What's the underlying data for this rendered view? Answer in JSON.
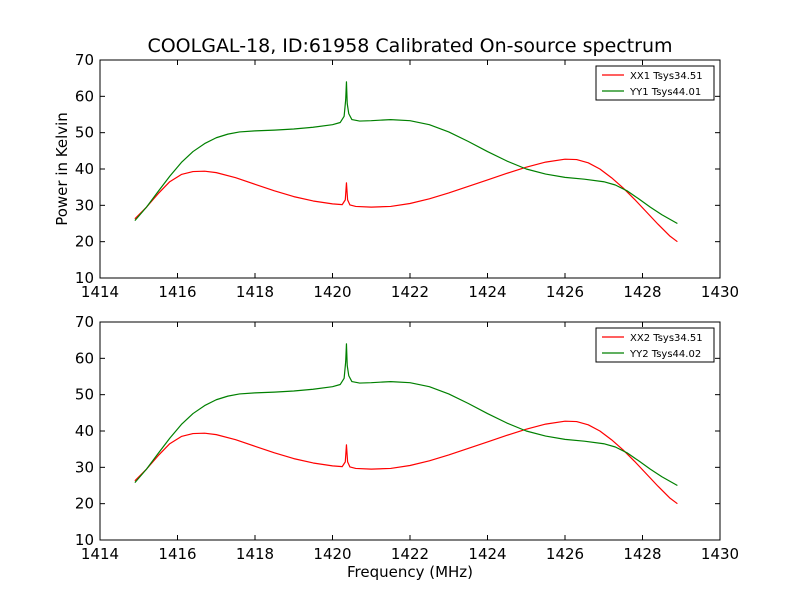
{
  "figure": {
    "title": "COOLGAL-18, ID:61958 Calibrated On-source spectrum",
    "xlabel": "Frequency (MHz)",
    "ylabel": "Power in Kelvin"
  },
  "chart_data": [
    {
      "type": "line",
      "title": "COOLGAL-18, ID:61958 Calibrated On-source spectrum",
      "xlabel": "",
      "ylabel": "Power in Kelvin",
      "xlim": [
        1414,
        1430
      ],
      "ylim": [
        10,
        70
      ],
      "xticks": [
        1414,
        1416,
        1418,
        1420,
        1422,
        1424,
        1426,
        1428,
        1430
      ],
      "yticks": [
        10,
        20,
        30,
        40,
        50,
        60,
        70
      ],
      "legend": "top-right",
      "series": [
        {
          "name": "XX1 Tsys34.51",
          "color": "#ff0000",
          "x": [
            1414.9,
            1415.2,
            1415.5,
            1415.8,
            1416.1,
            1416.4,
            1416.7,
            1417.0,
            1417.5,
            1418.0,
            1418.5,
            1419.0,
            1419.5,
            1420.0,
            1420.25,
            1420.33,
            1420.36,
            1420.39,
            1420.45,
            1420.6,
            1421.0,
            1421.5,
            1422.0,
            1422.5,
            1423.0,
            1423.5,
            1424.0,
            1424.5,
            1425.0,
            1425.5,
            1426.0,
            1426.3,
            1426.6,
            1426.9,
            1427.2,
            1427.5,
            1427.8,
            1428.1,
            1428.4,
            1428.7,
            1428.9
          ],
          "y": [
            26.3,
            29.5,
            33.2,
            36.5,
            38.5,
            39.3,
            39.4,
            39.0,
            37.6,
            35.8,
            34.0,
            32.4,
            31.2,
            30.4,
            30.2,
            31.5,
            36.2,
            31.5,
            30.1,
            29.7,
            29.5,
            29.7,
            30.5,
            31.8,
            33.4,
            35.2,
            37.0,
            38.8,
            40.5,
            41.9,
            42.7,
            42.6,
            41.7,
            40.0,
            37.6,
            34.8,
            31.6,
            28.2,
            24.8,
            21.6,
            20.0
          ]
        },
        {
          "name": "YY1 Tsys44.01",
          "color": "#008000",
          "x": [
            1414.9,
            1415.2,
            1415.5,
            1415.8,
            1416.1,
            1416.4,
            1416.7,
            1417.0,
            1417.3,
            1417.6,
            1418.0,
            1418.5,
            1419.0,
            1419.5,
            1420.0,
            1420.2,
            1420.3,
            1420.34,
            1420.36,
            1420.38,
            1420.42,
            1420.5,
            1420.7,
            1421.0,
            1421.5,
            1422.0,
            1422.5,
            1423.0,
            1423.5,
            1424.0,
            1424.5,
            1425.0,
            1425.5,
            1426.0,
            1426.5,
            1427.0,
            1427.3,
            1427.6,
            1427.9,
            1428.2,
            1428.5,
            1428.9
          ],
          "y": [
            25.8,
            29.5,
            33.8,
            38.0,
            41.8,
            44.8,
            47.0,
            48.6,
            49.6,
            50.2,
            50.5,
            50.7,
            51.0,
            51.5,
            52.2,
            52.8,
            54.5,
            59.0,
            64.0,
            58.0,
            55.2,
            53.6,
            53.2,
            53.3,
            53.6,
            53.3,
            52.2,
            50.2,
            47.6,
            44.8,
            42.2,
            40.0,
            38.6,
            37.7,
            37.2,
            36.5,
            35.6,
            34.0,
            31.8,
            29.5,
            27.4,
            25.0
          ]
        }
      ]
    },
    {
      "type": "line",
      "title": "",
      "xlabel": "Frequency (MHz)",
      "ylabel": "",
      "xlim": [
        1414,
        1430
      ],
      "ylim": [
        10,
        70
      ],
      "xticks": [
        1414,
        1416,
        1418,
        1420,
        1422,
        1424,
        1426,
        1428,
        1430
      ],
      "yticks": [
        10,
        20,
        30,
        40,
        50,
        60,
        70
      ],
      "legend": "top-right",
      "series": [
        {
          "name": "XX2 Tsys34.51",
          "color": "#ff0000",
          "x": [
            1414.9,
            1415.2,
            1415.5,
            1415.8,
            1416.1,
            1416.4,
            1416.7,
            1417.0,
            1417.5,
            1418.0,
            1418.5,
            1419.0,
            1419.5,
            1420.0,
            1420.25,
            1420.33,
            1420.36,
            1420.39,
            1420.45,
            1420.6,
            1421.0,
            1421.5,
            1422.0,
            1422.5,
            1423.0,
            1423.5,
            1424.0,
            1424.5,
            1425.0,
            1425.5,
            1426.0,
            1426.3,
            1426.6,
            1426.9,
            1427.2,
            1427.5,
            1427.8,
            1428.1,
            1428.4,
            1428.7,
            1428.9
          ],
          "y": [
            26.3,
            29.5,
            33.2,
            36.5,
            38.5,
            39.3,
            39.4,
            39.0,
            37.6,
            35.8,
            34.0,
            32.4,
            31.2,
            30.4,
            30.2,
            31.5,
            36.2,
            31.5,
            30.1,
            29.7,
            29.5,
            29.7,
            30.5,
            31.8,
            33.4,
            35.2,
            37.0,
            38.8,
            40.5,
            41.9,
            42.7,
            42.6,
            41.7,
            40.0,
            37.6,
            34.8,
            31.6,
            28.2,
            24.8,
            21.6,
            20.0
          ]
        },
        {
          "name": "YY2 Tsys44.02",
          "color": "#008000",
          "x": [
            1414.9,
            1415.2,
            1415.5,
            1415.8,
            1416.1,
            1416.4,
            1416.7,
            1417.0,
            1417.3,
            1417.6,
            1418.0,
            1418.5,
            1419.0,
            1419.5,
            1420.0,
            1420.2,
            1420.3,
            1420.34,
            1420.36,
            1420.38,
            1420.42,
            1420.5,
            1420.7,
            1421.0,
            1421.5,
            1422.0,
            1422.5,
            1423.0,
            1423.5,
            1424.0,
            1424.5,
            1425.0,
            1425.5,
            1426.0,
            1426.5,
            1427.0,
            1427.3,
            1427.6,
            1427.9,
            1428.2,
            1428.5,
            1428.9
          ],
          "y": [
            25.8,
            29.5,
            33.8,
            38.0,
            41.8,
            44.8,
            47.0,
            48.6,
            49.6,
            50.2,
            50.5,
            50.7,
            51.0,
            51.5,
            52.2,
            52.8,
            54.5,
            59.0,
            64.0,
            58.0,
            55.2,
            53.6,
            53.2,
            53.3,
            53.6,
            53.3,
            52.2,
            50.2,
            47.6,
            44.8,
            42.2,
            40.0,
            38.6,
            37.7,
            37.2,
            36.5,
            35.6,
            34.0,
            31.8,
            29.5,
            27.4,
            25.0
          ]
        }
      ]
    }
  ]
}
